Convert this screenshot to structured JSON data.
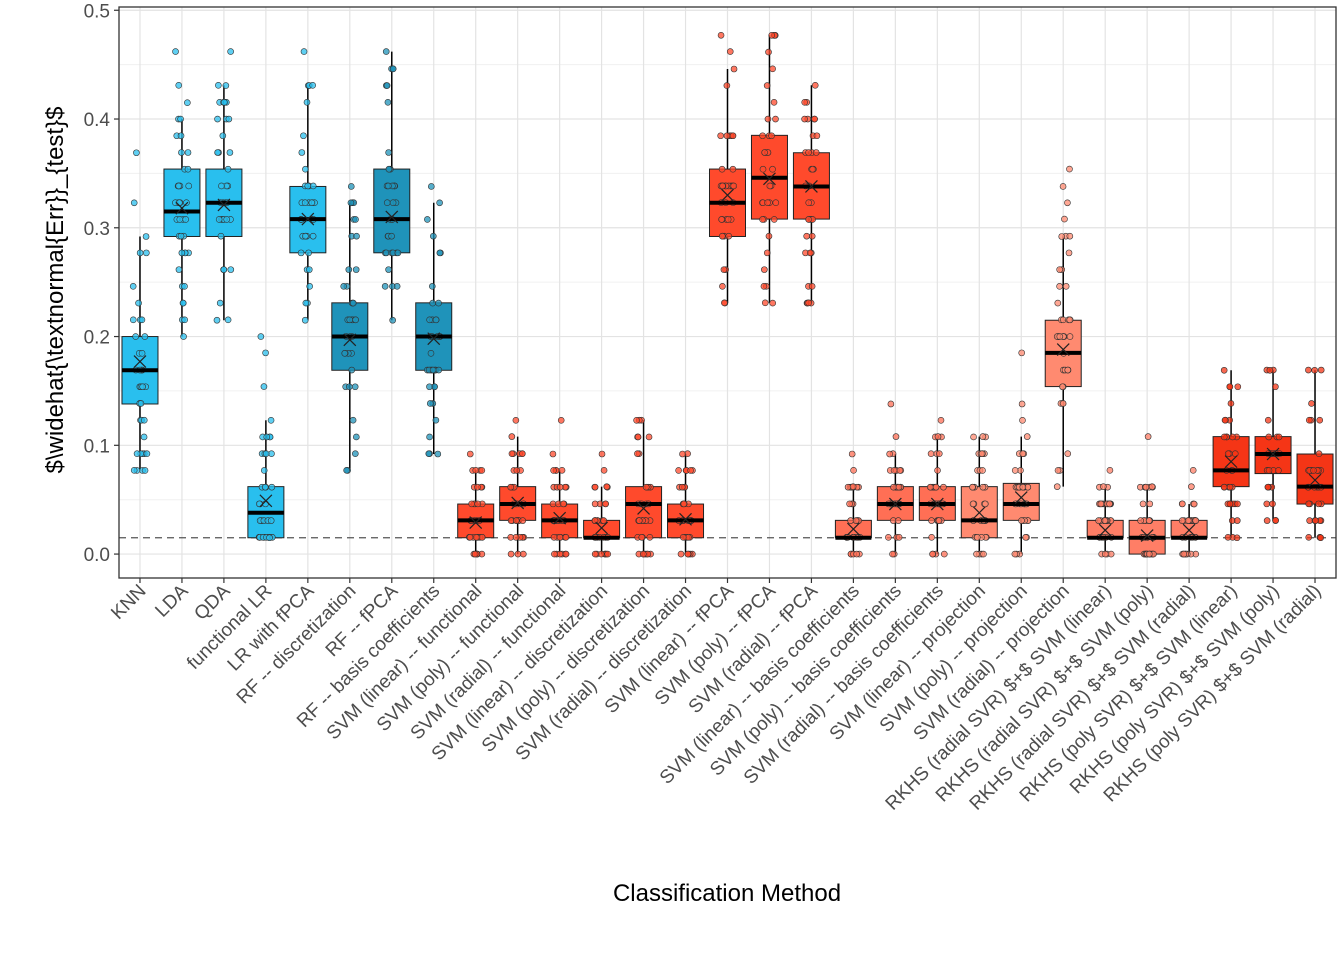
{
  "chart_data": {
    "type": "boxplot",
    "xlabel": "Classification Method",
    "ylabel": "$\\widehat{\\textnormal{Err}}_{test}$",
    "ylim": [
      -0.022,
      0.503
    ],
    "yticks": [
      0.0,
      0.1,
      0.2,
      0.3,
      0.4,
      0.5
    ],
    "ytick_labels": [
      "0.0",
      "0.1",
      "0.2",
      "0.3",
      "0.4",
      "0.5"
    ],
    "reference_line": 0.015,
    "grid": true,
    "methods": [
      {
        "name": "KNN",
        "color": "#29BFEE",
        "q1": 0.138,
        "median": 0.169,
        "q3": 0.2,
        "lo": 0.077,
        "hi": 0.292,
        "mean": 0.177,
        "outliers": [
          0.323,
          0.369
        ]
      },
      {
        "name": "LDA",
        "color": "#29BFEE",
        "q1": 0.292,
        "median": 0.315,
        "q3": 0.354,
        "lo": 0.2,
        "hi": 0.4,
        "mean": 0.318,
        "outliers": [
          0.415,
          0.431,
          0.462
        ]
      },
      {
        "name": "QDA",
        "color": "#29BFEE",
        "q1": 0.292,
        "median": 0.323,
        "q3": 0.354,
        "lo": 0.215,
        "hi": 0.431,
        "mean": 0.321,
        "outliers": [
          0.462
        ]
      },
      {
        "name": "functional LR",
        "color": "#29BFEE",
        "q1": 0.015,
        "median": 0.038,
        "q3": 0.062,
        "lo": 0.015,
        "hi": 0.123,
        "mean": 0.049,
        "outliers": [
          0.154,
          0.185,
          0.2
        ]
      },
      {
        "name": "LR with fPCA",
        "color": "#29BFEE",
        "q1": 0.277,
        "median": 0.308,
        "q3": 0.338,
        "lo": 0.215,
        "hi": 0.431,
        "mean": 0.308,
        "outliers": [
          0.462
        ]
      },
      {
        "name": "RF -- discretization",
        "color": "#1F93BA",
        "q1": 0.169,
        "median": 0.2,
        "q3": 0.231,
        "lo": 0.077,
        "hi": 0.323,
        "mean": 0.197,
        "outliers": [
          0.338
        ]
      },
      {
        "name": "RF -- fPCA",
        "color": "#1F93BA",
        "q1": 0.277,
        "median": 0.308,
        "q3": 0.354,
        "lo": 0.215,
        "hi": 0.462,
        "mean": 0.31,
        "outliers": []
      },
      {
        "name": "RF -- basis coefficients",
        "color": "#1F93BA",
        "q1": 0.169,
        "median": 0.2,
        "q3": 0.231,
        "lo": 0.092,
        "hi": 0.323,
        "mean": 0.198,
        "outliers": [
          0.338
        ]
      },
      {
        "name": "SVM (linear) -- functional",
        "color": "#FF4A2C",
        "q1": 0.015,
        "median": 0.031,
        "q3": 0.046,
        "lo": 0.0,
        "hi": 0.077,
        "mean": 0.029,
        "outliers": [
          0.092
        ]
      },
      {
        "name": "SVM (poly) -- functional",
        "color": "#FF4A2C",
        "q1": 0.031,
        "median": 0.046,
        "q3": 0.062,
        "lo": 0.0,
        "hi": 0.108,
        "mean": 0.047,
        "outliers": [
          0.123
        ]
      },
      {
        "name": "SVM (radial) -- functional",
        "color": "#FF4A2C",
        "q1": 0.015,
        "median": 0.031,
        "q3": 0.046,
        "lo": 0.0,
        "hi": 0.077,
        "mean": 0.033,
        "outliers": [
          0.092,
          0.123
        ]
      },
      {
        "name": "SVM (linear) -- discretization",
        "color": "#FF4A2C",
        "q1": 0.015,
        "median": 0.015,
        "q3": 0.031,
        "lo": 0.0,
        "hi": 0.062,
        "mean": 0.024,
        "outliers": [
          0.077,
          0.092
        ]
      },
      {
        "name": "SVM (poly) -- discretization",
        "color": "#FF4A2C",
        "q1": 0.015,
        "median": 0.046,
        "q3": 0.062,
        "lo": 0.0,
        "hi": 0.123,
        "mean": 0.042,
        "outliers": []
      },
      {
        "name": "SVM (radial) -- discretization",
        "color": "#FF4A2C",
        "q1": 0.015,
        "median": 0.031,
        "q3": 0.046,
        "lo": 0.0,
        "hi": 0.092,
        "mean": 0.032,
        "outliers": []
      },
      {
        "name": "SVM (linear) -- fPCA",
        "color": "#FF4A2C",
        "q1": 0.292,
        "median": 0.323,
        "q3": 0.354,
        "lo": 0.231,
        "hi": 0.446,
        "mean": 0.33,
        "outliers": [
          0.462,
          0.477
        ]
      },
      {
        "name": "SVM (poly) -- fPCA",
        "color": "#FF4A2C",
        "q1": 0.308,
        "median": 0.346,
        "q3": 0.385,
        "lo": 0.231,
        "hi": 0.477,
        "mean": 0.345,
        "outliers": []
      },
      {
        "name": "SVM (radial) -- fPCA",
        "color": "#FF4A2C",
        "q1": 0.308,
        "median": 0.338,
        "q3": 0.369,
        "lo": 0.231,
        "hi": 0.431,
        "mean": 0.338,
        "outliers": []
      },
      {
        "name": "SVM (linear) -- basis coefficients",
        "color": "#FF6F55",
        "q1": 0.015,
        "median": 0.015,
        "q3": 0.031,
        "lo": 0.0,
        "hi": 0.062,
        "mean": 0.023,
        "outliers": [
          0.077,
          0.092
        ]
      },
      {
        "name": "SVM (poly) -- basis coefficients",
        "color": "#FF6F55",
        "q1": 0.031,
        "median": 0.046,
        "q3": 0.062,
        "lo": 0.0,
        "hi": 0.092,
        "mean": 0.046,
        "outliers": [
          0.108,
          0.138
        ]
      },
      {
        "name": "SVM (radial) -- basis coefficients",
        "color": "#FF6F55",
        "q1": 0.031,
        "median": 0.046,
        "q3": 0.062,
        "lo": 0.0,
        "hi": 0.108,
        "mean": 0.046,
        "outliers": [
          0.123
        ]
      },
      {
        "name": "SVM (linear) -- projection",
        "color": "#FF8A70",
        "q1": 0.015,
        "median": 0.031,
        "q3": 0.062,
        "lo": 0.0,
        "hi": 0.108,
        "mean": 0.038,
        "outliers": []
      },
      {
        "name": "SVM (poly) -- projection",
        "color": "#FF8A70",
        "q1": 0.031,
        "median": 0.046,
        "q3": 0.065,
        "lo": 0.0,
        "hi": 0.108,
        "mean": 0.052,
        "outliers": [
          0.123,
          0.138,
          0.185
        ]
      },
      {
        "name": "SVM (radial) -- projection",
        "color": "#FF8A70",
        "q1": 0.154,
        "median": 0.185,
        "q3": 0.215,
        "lo": 0.062,
        "hi": 0.292,
        "mean": 0.188,
        "outliers": [
          0.308,
          0.323,
          0.338,
          0.354
        ]
      },
      {
        "name": "RKHS (radial SVR) $+$ SVM (linear)",
        "color": "#FF7E66",
        "q1": 0.015,
        "median": 0.015,
        "q3": 0.031,
        "lo": 0.0,
        "hi": 0.062,
        "mean": 0.022,
        "outliers": [
          0.077
        ]
      },
      {
        "name": "RKHS (radial SVR) $+$ SVM (poly)",
        "color": "#FF7E66",
        "q1": 0.0,
        "median": 0.015,
        "q3": 0.031,
        "lo": 0.0,
        "hi": 0.062,
        "mean": 0.017,
        "outliers": [
          0.108
        ]
      },
      {
        "name": "RKHS (radial SVR) $+$ SVM (radial)",
        "color": "#FF7E66",
        "q1": 0.015,
        "median": 0.015,
        "q3": 0.031,
        "lo": 0.0,
        "hi": 0.046,
        "mean": 0.022,
        "outliers": [
          0.062,
          0.077
        ]
      },
      {
        "name": "RKHS (poly SVR) $+$ SVM (linear)",
        "color": "#F53516",
        "q1": 0.062,
        "median": 0.077,
        "q3": 0.108,
        "lo": 0.015,
        "hi": 0.169,
        "mean": 0.085,
        "outliers": []
      },
      {
        "name": "RKHS (poly SVR) $+$ SVM (poly)",
        "color": "#F53516",
        "q1": 0.074,
        "median": 0.092,
        "q3": 0.108,
        "lo": 0.031,
        "hi": 0.169,
        "mean": 0.092,
        "outliers": []
      },
      {
        "name": "RKHS (poly SVR) $+$ SVM (radial)",
        "color": "#F53516",
        "q1": 0.046,
        "median": 0.062,
        "q3": 0.092,
        "lo": 0.015,
        "hi": 0.169,
        "mean": 0.068,
        "outliers": []
      }
    ]
  }
}
